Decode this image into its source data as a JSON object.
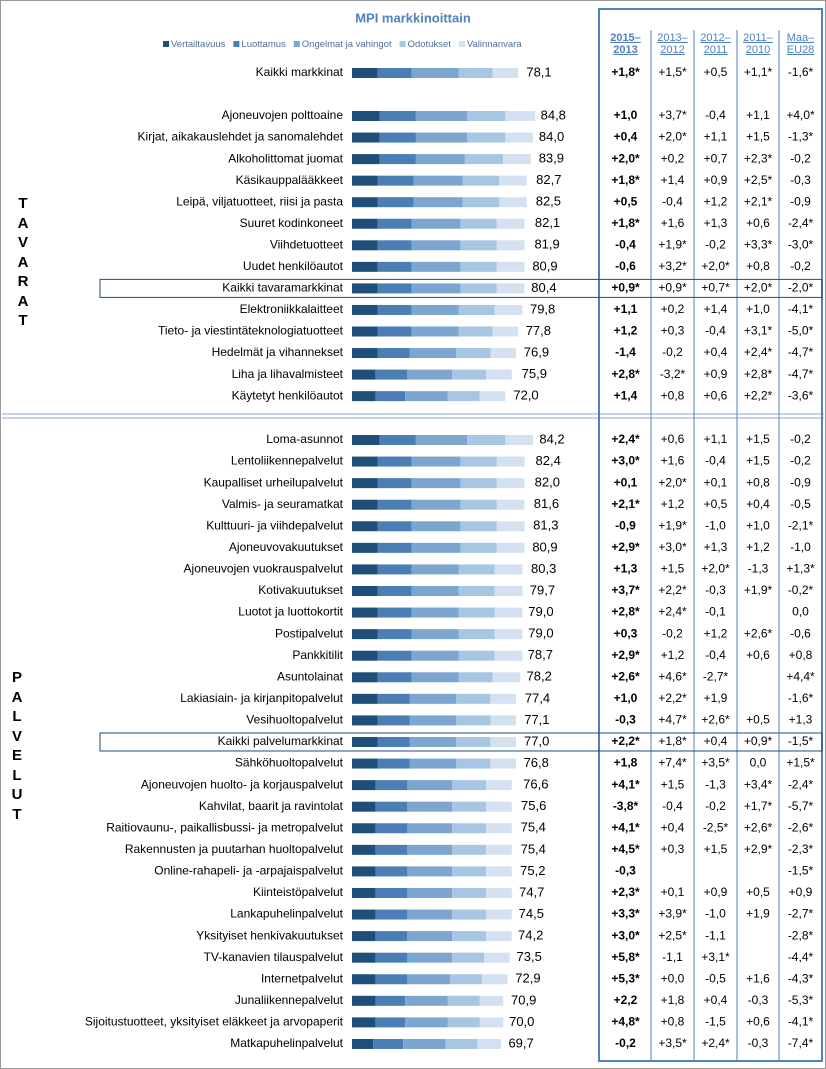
{
  "title": "MPI markkinoittain",
  "legend": [
    {
      "name": "Vertailtavuus",
      "color": "#1f4e79"
    },
    {
      "name": "Luottamus",
      "color": "#4a7eb5"
    },
    {
      "name": "Ongelmat ja vahingot",
      "color": "#7ca6d0"
    },
    {
      "name": "Odotukset",
      "color": "#a7c6e4"
    },
    {
      "name": "Valinnanvara",
      "color": "#d3e1f1"
    }
  ],
  "header": {
    "columns": [
      [
        "2015–",
        "2013"
      ],
      [
        "2013–",
        "2012"
      ],
      [
        "2012–",
        "2011"
      ],
      [
        "2011–",
        "2010"
      ],
      [
        "Maa–",
        "EU28"
      ]
    ]
  },
  "overall": {
    "name": "Kaikki markkinat",
    "value": 78.1,
    "value_label": "78,1",
    "segments": [
      12,
      16,
      22,
      16,
      12
    ],
    "changes": [
      "+1,8*",
      "+1,5*",
      "+0,5",
      "+1,1*",
      "-1,6*"
    ]
  },
  "sections": [
    {
      "label": "TAVARAT",
      "rows": [
        {
          "name": "Ajoneuvojen polttoaine",
          "value": 84.8,
          "value_label": "84,8",
          "segments": [
            13,
            17,
            24,
            18,
            14
          ],
          "changes": [
            "+1,0",
            "+3,7*",
            "-0,4",
            "+1,1",
            "+4,0*"
          ]
        },
        {
          "name": "Kirjat, aikakauslehdet ja sanomalehdet",
          "value": 84.0,
          "value_label": "84,0",
          "segments": [
            13,
            17,
            24,
            18,
            13
          ],
          "changes": [
            "+0,4",
            "+2,0*",
            "+1,1",
            "+1,5",
            "-1,3*"
          ]
        },
        {
          "name": "Alkoholittomat juomat",
          "value": 83.9,
          "value_label": "83,9",
          "segments": [
            13,
            17,
            23,
            18,
            13
          ],
          "changes": [
            "+2,0*",
            "+0,2",
            "+0,7",
            "+2,3*",
            "-0,2"
          ]
        },
        {
          "name": "Käsikauppalääkkeet",
          "value": 82.7,
          "value_label": "82,7",
          "segments": [
            12,
            17,
            23,
            17,
            13
          ],
          "changes": [
            "+1,8*",
            "+1,4",
            "+0,9",
            "+2,5*",
            "-0,3"
          ]
        },
        {
          "name": "Leipä, viljatuotteet, riisi ja pasta",
          "value": 82.5,
          "value_label": "82,5",
          "segments": [
            12,
            17,
            23,
            17,
            13
          ],
          "changes": [
            "+0,5",
            "-0,4",
            "+1,2",
            "+2,1*",
            "-0,9"
          ]
        },
        {
          "name": "Suuret kodinkoneet",
          "value": 82.1,
          "value_label": "82,1",
          "segments": [
            12,
            16,
            23,
            17,
            13
          ],
          "changes": [
            "+1,8*",
            "+1,6",
            "+1,3",
            "+0,6",
            "-2,4*"
          ]
        },
        {
          "name": "Viihdetuotteet",
          "value": 81.9,
          "value_label": "81,9",
          "segments": [
            12,
            16,
            23,
            17,
            13
          ],
          "changes": [
            "-0,4",
            "+1,9*",
            "-0,2",
            "+3,3*",
            "-3,0*"
          ]
        },
        {
          "name": "Uudet henkilöautot",
          "value": 80.9,
          "value_label": "80,9",
          "segments": [
            12,
            16,
            23,
            17,
            13
          ],
          "changes": [
            "-0,6",
            "+3,2*",
            "+2,0*",
            "+0,8",
            "-0,2"
          ]
        },
        {
          "name": "Kaikki tavaramarkkinat",
          "value": 80.4,
          "value_label": "80,4",
          "boxed": true,
          "segments": [
            12,
            16,
            23,
            17,
            13
          ],
          "changes": [
            "+0,9*",
            "+0,9*",
            "+0,7*",
            "+2,0*",
            "-2,0*"
          ]
        },
        {
          "name": "Elektroniikkalaitteet",
          "value": 79.8,
          "value_label": "79,8",
          "segments": [
            12,
            16,
            22,
            17,
            13
          ],
          "changes": [
            "+1,1",
            "+0,2",
            "+1,4",
            "+1,0",
            "-4,1*"
          ]
        },
        {
          "name": "Tieto- ja viestintäteknologiatuotteet",
          "value": 77.8,
          "value_label": "77,8",
          "segments": [
            12,
            16,
            22,
            16,
            12
          ],
          "changes": [
            "+1,2",
            "+0,3",
            "-0,4",
            "+3,1*",
            "-5,0*"
          ]
        },
        {
          "name": "Hedelmät ja vihannekset",
          "value": 76.9,
          "value_label": "76,9",
          "segments": [
            12,
            15,
            22,
            16,
            12
          ],
          "changes": [
            "-1,4",
            "-0,2",
            "+0,4",
            "+2,4*",
            "-4,7*"
          ]
        },
        {
          "name": "Liha ja lihavalmisteet",
          "value": 75.9,
          "value_label": "75,9",
          "segments": [
            11,
            15,
            21,
            16,
            12
          ],
          "changes": [
            "+2,8*",
            "-3,2*",
            "+0,9",
            "+2,8*",
            "-4,7*"
          ]
        },
        {
          "name": "Käytetyt henkilöautot",
          "value": 72.0,
          "value_label": "72,0",
          "segments": [
            11,
            14,
            20,
            15,
            12
          ],
          "changes": [
            "+1,4",
            "+0,8",
            "+0,6",
            "+2,2*",
            "-3,6*"
          ]
        }
      ]
    },
    {
      "label": "PALVELUT",
      "rows": [
        {
          "name": "Loma-asunnot",
          "value": 84.2,
          "value_label": "84,2",
          "segments": [
            13,
            17,
            24,
            18,
            13
          ],
          "changes": [
            "+2,4*",
            "+0,6",
            "+1,1",
            "+1,5",
            "-0,2"
          ]
        },
        {
          "name": "Lentoliikennepalvelut",
          "value": 82.4,
          "value_label": "82,4",
          "segments": [
            12,
            16,
            23,
            17,
            13
          ],
          "changes": [
            "+3,0*",
            "+1,6",
            "-0,4",
            "+1,5",
            "-0,2"
          ]
        },
        {
          "name": "Kaupalliset urheilupalvelut",
          "value": 82.0,
          "value_label": "82,0",
          "segments": [
            12,
            16,
            23,
            17,
            13
          ],
          "changes": [
            "+0,1",
            "+2,0*",
            "+0,1",
            "+0,8",
            "-0,9"
          ]
        },
        {
          "name": "Valmis- ja seuramatkat",
          "value": 81.6,
          "value_label": "81,6",
          "segments": [
            12,
            16,
            23,
            17,
            13
          ],
          "changes": [
            "+2,1*",
            "+1,2",
            "+0,5",
            "+0,4",
            "-0,5"
          ]
        },
        {
          "name": "Kulttuuri- ja viihdepalvelut",
          "value": 81.3,
          "value_label": "81,3",
          "segments": [
            12,
            16,
            23,
            17,
            13
          ],
          "changes": [
            "-0,9",
            "+1,9*",
            "-1,0",
            "+1,0",
            "-2,1*"
          ]
        },
        {
          "name": "Ajoneuvovakuutukset",
          "value": 80.9,
          "value_label": "80,9",
          "segments": [
            12,
            16,
            23,
            17,
            13
          ],
          "changes": [
            "+2,9*",
            "+3,0*",
            "+1,3",
            "+1,2",
            "-1,0"
          ]
        },
        {
          "name": "Ajoneuvojen vuokrauspalvelut",
          "value": 80.3,
          "value_label": "80,3",
          "segments": [
            12,
            16,
            22,
            17,
            13
          ],
          "changes": [
            "+1,3",
            "+1,5",
            "+2,0*",
            "-1,3",
            "+1,3*"
          ]
        },
        {
          "name": "Kotivakuutukset",
          "value": 79.7,
          "value_label": "79,7",
          "segments": [
            12,
            16,
            22,
            17,
            13
          ],
          "changes": [
            "+3,7*",
            "+2,2*",
            "-0,3",
            "+1,9*",
            "-0,2*"
          ]
        },
        {
          "name": "Luotot ja luottokortit",
          "value": 79.0,
          "value_label": "79,0",
          "segments": [
            12,
            16,
            22,
            17,
            13
          ],
          "changes": [
            "+2,8*",
            "+2,4*",
            "-0,1",
            null,
            "0,0"
          ]
        },
        {
          "name": "Postipalvelut",
          "value": 79.0,
          "value_label": "79,0",
          "segments": [
            12,
            16,
            22,
            17,
            13
          ],
          "changes": [
            "+0,3",
            "-0,2",
            "+1,2",
            "+2,6*",
            "-0,6"
          ]
        },
        {
          "name": "Pankkitilit",
          "value": 78.7,
          "value_label": "78,7",
          "segments": [
            12,
            16,
            22,
            17,
            13
          ],
          "changes": [
            "+2,9*",
            "+1,2",
            "-0,4",
            "+0,6",
            "+0,8"
          ]
        },
        {
          "name": "Asuntolainat",
          "value": 78.2,
          "value_label": "78,2",
          "segments": [
            12,
            16,
            22,
            16,
            13
          ],
          "changes": [
            "+2,6*",
            "+4,6*",
            "-2,7*",
            null,
            "+4,4*"
          ]
        },
        {
          "name": "Lakiasiain- ja kirjanpitopalvelut",
          "value": 77.4,
          "value_label": "77,4",
          "segments": [
            12,
            15,
            22,
            16,
            12
          ],
          "changes": [
            "+1,0",
            "+2,2*",
            "+1,9",
            null,
            "-1,6*"
          ]
        },
        {
          "name": "Vesihuoltopalvelut",
          "value": 77.1,
          "value_label": "77,1",
          "segments": [
            12,
            15,
            22,
            16,
            12
          ],
          "changes": [
            "-0,3",
            "+4,7*",
            "+2,6*",
            "+0,5",
            "+1,3"
          ]
        },
        {
          "name": "Kaikki palvelumarkkinat",
          "value": 77.0,
          "value_label": "77,0",
          "boxed": true,
          "segments": [
            12,
            15,
            22,
            16,
            12
          ],
          "changes": [
            "+2,2*",
            "+1,8*",
            "+0,4",
            "+0,9*",
            "-1,5*"
          ]
        },
        {
          "name": "Sähköhuoltopalvelut",
          "value": 76.8,
          "value_label": "76,8",
          "segments": [
            12,
            15,
            22,
            16,
            12
          ],
          "changes": [
            "+1,8",
            "+7,4*",
            "+3,5*",
            "0,0",
            "+1,5*"
          ]
        },
        {
          "name": "Ajoneuvojen huolto- ja korjauspalvelut",
          "value": 76.6,
          "value_label": "76,6",
          "segments": [
            11,
            15,
            21,
            16,
            12
          ],
          "changes": [
            "+4,1*",
            "+1,5",
            "-1,3",
            "+3,4*",
            "-2,4*"
          ]
        },
        {
          "name": "Kahvilat, baarit ja ravintolat",
          "value": 75.6,
          "value_label": "75,6",
          "segments": [
            11,
            15,
            21,
            16,
            12
          ],
          "changes": [
            "-3,8*",
            "-0,4",
            "-0,2",
            "+1,7*",
            "-5,7*"
          ]
        },
        {
          "name": "Raitiovaunu-, paikallisbussi- ja metropalvelut",
          "value": 75.4,
          "value_label": "75,4",
          "segments": [
            11,
            15,
            21,
            16,
            12
          ],
          "changes": [
            "+4,1*",
            "+0,4",
            "-2,5*",
            "+2,6*",
            "-2,6*"
          ]
        },
        {
          "name": "Rakennusten ja puutarhan huoltopalvelut",
          "value": 75.4,
          "value_label": "75,4",
          "segments": [
            11,
            15,
            21,
            16,
            12
          ],
          "changes": [
            "+4,5*",
            "+0,3",
            "+1,5",
            "+2,9*",
            "-2,3*"
          ]
        },
        {
          "name": "Online-rahapeli- ja -arpajaispalvelut",
          "value": 75.2,
          "value_label": "75,2",
          "segments": [
            11,
            15,
            21,
            16,
            12
          ],
          "changes": [
            "-0,3",
            null,
            null,
            null,
            "-1,5*"
          ]
        },
        {
          "name": "Kiinteistöpalvelut",
          "value": 74.7,
          "value_label": "74,7",
          "segments": [
            11,
            15,
            21,
            16,
            12
          ],
          "changes": [
            "+2,3*",
            "+0,1",
            "+0,9",
            "+0,5",
            "+0,9"
          ]
        },
        {
          "name": "Lankapuhelinpalvelut",
          "value": 74.5,
          "value_label": "74,5",
          "segments": [
            11,
            15,
            21,
            16,
            12
          ],
          "changes": [
            "+3,3*",
            "+3,9*",
            "-1,0",
            "+1,9",
            "-2,7*"
          ]
        },
        {
          "name": "Yksityiset henkivakuutukset",
          "value": 74.2,
          "value_label": "74,2",
          "segments": [
            11,
            15,
            21,
            16,
            12
          ],
          "changes": [
            "+3,0*",
            "+2,5*",
            "-1,1",
            null,
            "-2,8*"
          ]
        },
        {
          "name": "TV-kanavien tilauspalvelut",
          "value": 73.5,
          "value_label": "73,5",
          "segments": [
            11,
            15,
            21,
            15,
            12
          ],
          "changes": [
            "+5,8*",
            "-1,1",
            "+3,1*",
            null,
            "-4,4*"
          ]
        },
        {
          "name": "Internetpalvelut",
          "value": 72.9,
          "value_label": "72,9",
          "segments": [
            11,
            15,
            20,
            15,
            12
          ],
          "changes": [
            "+5,3*",
            "+0,0",
            "-0,5",
            "+1,6",
            "-4,3*"
          ]
        },
        {
          "name": "Junaliikennepalvelut",
          "value": 70.9,
          "value_label": "70,9",
          "segments": [
            11,
            14,
            20,
            15,
            11
          ],
          "changes": [
            "+2,2",
            "+1,8",
            "+0,4",
            "-0,3",
            "-5,3*"
          ]
        },
        {
          "name": "Sijoitustuotteet, yksityiset eläkkeet ja arvopaperit",
          "value": 70.0,
          "value_label": "70,0",
          "segments": [
            11,
            14,
            20,
            15,
            11
          ],
          "changes": [
            "+4,8*",
            "+0,8",
            "-1,5",
            "+0,6",
            "-4,1*"
          ]
        },
        {
          "name": "Matkapuhelinpalvelut",
          "value": 69.7,
          "value_label": "69,7",
          "segments": [
            10,
            14,
            20,
            15,
            11
          ],
          "changes": [
            "-0,2",
            "+3,5*",
            "+2,4*",
            "-0,3",
            "-7,4*"
          ]
        }
      ]
    }
  ]
}
